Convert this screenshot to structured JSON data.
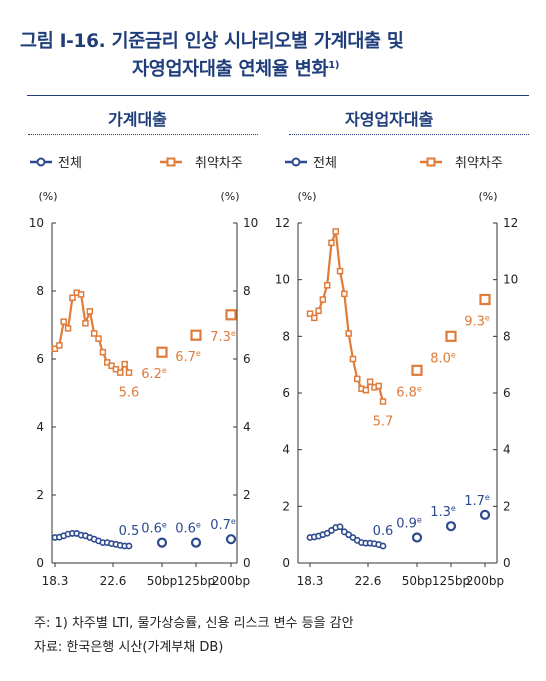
{
  "figure": {
    "title_line1": "그림 Ⅰ-16. 기준금리 인상 시나리오별 가계대출 및",
    "title_line2": "자영업자대출 연체율 변화",
    "title_sup": "1)"
  },
  "notes": {
    "note": "주: 1) 차주별 LTI, 물가상승률, 신용 리스크 변수 등을 감안",
    "source": "자료: 한국은행 시산(가계부채 DB)"
  },
  "colors": {
    "total": "#2e4a8f",
    "vulnerable": "#e07b39",
    "title": "#1f3d7a"
  },
  "chart_data": [
    {
      "type": "line",
      "title": "가계대출",
      "legend": [
        "전체",
        "취약차주"
      ],
      "unit_left": "(%)",
      "unit_right": "(%)",
      "ylim": [
        0,
        10
      ],
      "yticks": [
        "0",
        "2",
        "4",
        "6",
        "8",
        "10"
      ],
      "xticks": [
        "18.3",
        "22.6",
        "50bp",
        "125bp",
        "200bp"
      ],
      "series": [
        {
          "name": "전체",
          "x": [
            0,
            1,
            2,
            3,
            4,
            5,
            6,
            7,
            8,
            9,
            10,
            11,
            12,
            13,
            14,
            15,
            16,
            17
          ],
          "values": [
            0.75,
            0.76,
            0.8,
            0.85,
            0.87,
            0.87,
            0.82,
            0.8,
            0.75,
            0.7,
            0.65,
            0.6,
            0.6,
            0.57,
            0.55,
            0.52,
            0.5,
            0.5
          ]
        },
        {
          "name": "취약차주",
          "x": [
            0,
            1,
            2,
            3,
            4,
            5,
            6,
            7,
            8,
            9,
            10,
            11,
            12,
            13,
            14,
            15,
            16,
            17
          ],
          "values": [
            6.3,
            6.4,
            7.1,
            6.9,
            7.8,
            7.95,
            7.9,
            7.05,
            7.4,
            6.75,
            6.6,
            6.2,
            5.9,
            5.8,
            5.7,
            5.6,
            5.85,
            5.6
          ]
        }
      ],
      "scenarios": [
        {
          "label": "50bp",
          "total": 0.6,
          "vulnerable": 6.2
        },
        {
          "label": "125bp",
          "total": 0.6,
          "vulnerable": 6.7
        },
        {
          "label": "200bp",
          "total": 0.7,
          "vulnerable": 7.3
        }
      ],
      "data_labels": [
        {
          "text": "0.5",
          "series": "전체"
        },
        {
          "text": "5.6",
          "series": "취약차주"
        },
        {
          "text": "0.6",
          "sup": "e",
          "series": "전체"
        },
        {
          "text": "0.6",
          "sup": "e",
          "series": "전체"
        },
        {
          "text": "0.7",
          "sup": "e",
          "series": "전체"
        },
        {
          "text": "6.2",
          "sup": "e",
          "series": "취약차주"
        },
        {
          "text": "6.7",
          "sup": "e",
          "series": "취약차주"
        },
        {
          "text": "7.3",
          "sup": "e",
          "series": "취약차주"
        }
      ]
    },
    {
      "type": "line",
      "title": "자영업자대출",
      "legend": [
        "전체",
        "취약차주"
      ],
      "unit_left": "(%)",
      "unit_right": "(%)",
      "ylim": [
        0,
        12
      ],
      "yticks": [
        "0",
        "2",
        "4",
        "6",
        "8",
        "10",
        "12"
      ],
      "xticks": [
        "18.3",
        "22.6",
        "50bp",
        "125bp",
        "200bp"
      ],
      "series": [
        {
          "name": "전체",
          "x": [
            0,
            1,
            2,
            3,
            4,
            5,
            6,
            7,
            8,
            9,
            10,
            11,
            12,
            13,
            14,
            15,
            16,
            17
          ],
          "values": [
            0.9,
            0.92,
            0.95,
            1.0,
            1.05,
            1.15,
            1.25,
            1.28,
            1.1,
            1.0,
            0.9,
            0.8,
            0.72,
            0.7,
            0.7,
            0.68,
            0.65,
            0.6
          ]
        },
        {
          "name": "취약차주",
          "x": [
            0,
            1,
            2,
            3,
            4,
            5,
            6,
            7,
            8,
            9,
            10,
            11,
            12,
            13,
            14,
            15,
            16,
            17
          ],
          "values": [
            8.8,
            8.65,
            8.9,
            9.3,
            9.8,
            11.3,
            11.7,
            10.3,
            9.5,
            8.1,
            7.2,
            6.5,
            6.15,
            6.1,
            6.4,
            6.2,
            6.25,
            5.7
          ]
        }
      ],
      "scenarios": [
        {
          "label": "50bp",
          "total": 0.9,
          "vulnerable": 6.8
        },
        {
          "label": "125bp",
          "total": 1.3,
          "vulnerable": 8.0
        },
        {
          "label": "200bp",
          "total": 1.7,
          "vulnerable": 9.3
        }
      ],
      "data_labels": [
        {
          "text": "0.6",
          "series": "전체"
        },
        {
          "text": "5.7",
          "series": "취약차주"
        },
        {
          "text": "0.9",
          "sup": "e",
          "series": "전체"
        },
        {
          "text": "1.3",
          "sup": "e",
          "series": "전체"
        },
        {
          "text": "1.7",
          "sup": "e",
          "series": "전체"
        },
        {
          "text": "6.8",
          "sup": "e",
          "series": "취약차주"
        },
        {
          "text": "8.0",
          "sup": "e",
          "series": "취약차주"
        },
        {
          "text": "9.3",
          "sup": "e",
          "series": "취약차주"
        }
      ]
    }
  ]
}
